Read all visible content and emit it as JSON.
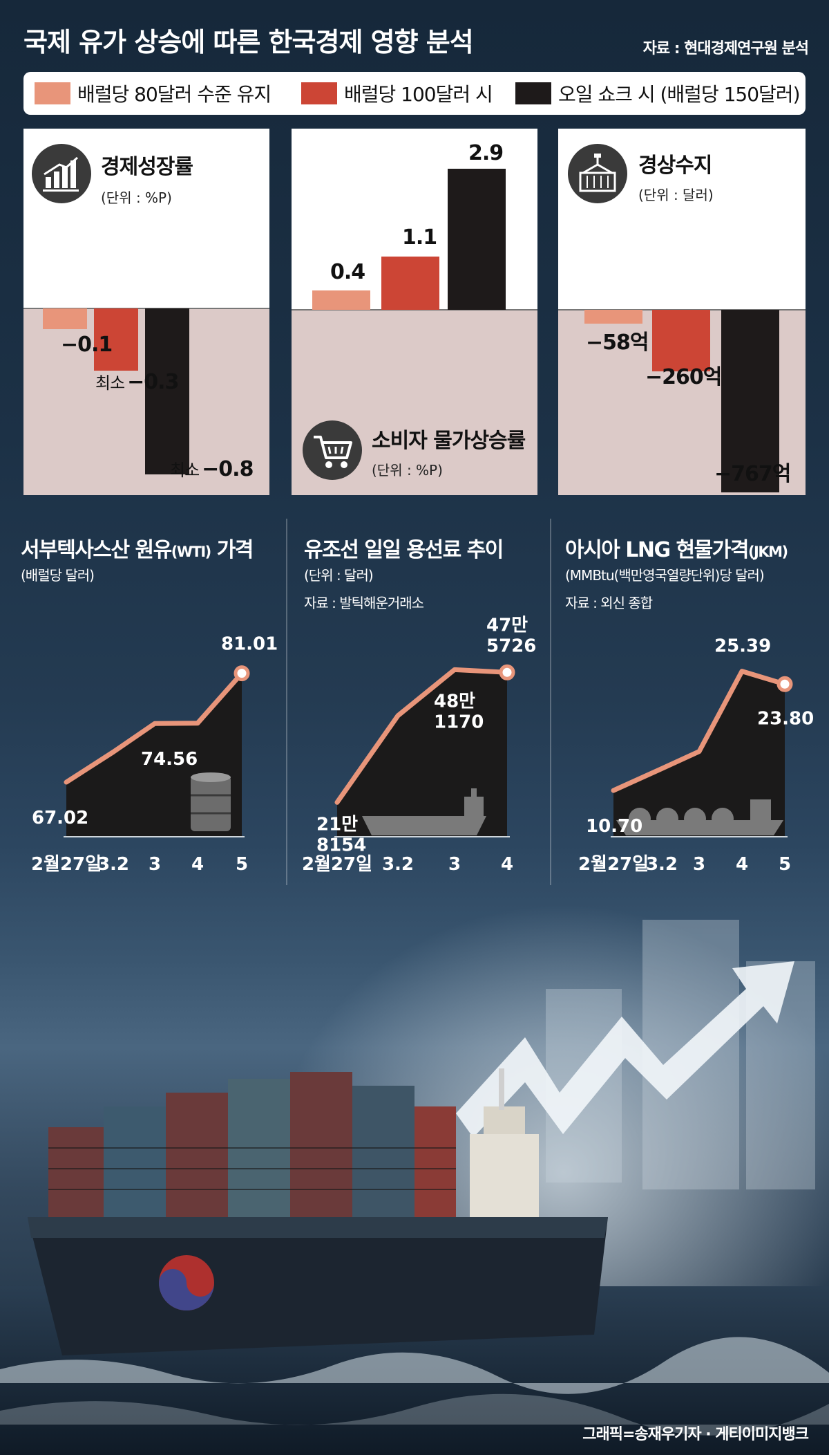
{
  "header": {
    "title": "국제 유가 상승에 따른 한국경제 영향 분석",
    "source": "자료 : 현대경제연구원 분석"
  },
  "legend": [
    {
      "label": "배럴당 80달러 수준 유지",
      "color": "#e8957a"
    },
    {
      "label": "배럴당 100달러 시",
      "color": "#cc4535"
    },
    {
      "label": "오일 쇼크 시 (배럴당 150달러)",
      "color": "#1e1a1a"
    }
  ],
  "colors": {
    "line": "#e8957a",
    "dark_fill": "#1b1a1a",
    "neg_bg": "#dccac8"
  },
  "chart_data": [
    {
      "type": "bar",
      "title": "경제성장률",
      "unit": "(단위 : %P)",
      "icon": "growth-chart-icon",
      "series": [
        {
          "name": "배럴당 80달러 수준 유지",
          "value": -0.1,
          "label": "−0.1",
          "prefix": ""
        },
        {
          "name": "배럴당 100달러 시",
          "value": -0.3,
          "label": "−0.3",
          "prefix": "최소"
        },
        {
          "name": "오일 쇼크 시 (배럴당 150달러)",
          "value": -0.8,
          "label": "−0.8",
          "prefix": "최소"
        }
      ]
    },
    {
      "type": "bar",
      "title": "소비자 물가상승률",
      "unit": "(단위 : %P)",
      "icon": "shopping-cart-icon",
      "series": [
        {
          "name": "배럴당 80달러 수준 유지",
          "value": 0.4,
          "label": "0.4",
          "prefix": ""
        },
        {
          "name": "배럴당 100달러 시",
          "value": 1.1,
          "label": "1.1",
          "prefix": ""
        },
        {
          "name": "오일 쇼크 시 (배럴당 150달러)",
          "value": 2.9,
          "label": "2.9",
          "prefix": ""
        }
      ]
    },
    {
      "type": "bar",
      "title": "경상수지",
      "unit": "(단위 : 달러)",
      "icon": "container-crane-icon",
      "series": [
        {
          "name": "배럴당 80달러 수준 유지",
          "value": -58,
          "label": "−58억",
          "prefix": ""
        },
        {
          "name": "배럴당 100달러 시",
          "value": -260,
          "label": "−260억",
          "prefix": ""
        },
        {
          "name": "오일 쇼크 시 (배럴당 150달러)",
          "value": -767,
          "label": "−767억",
          "prefix": ""
        }
      ]
    },
    {
      "type": "line",
      "title": "서부텍사스산 원유",
      "title_suffix": "(WTI)",
      "title_end": " 가격",
      "unit": "(배럴당 달러)",
      "source": "",
      "icon": "oil-barrel-icon",
      "x": [
        "2월27일",
        "3.2",
        "3",
        "4",
        "5"
      ],
      "y": [
        67.02,
        70.9,
        74.56,
        74.6,
        81.01
      ],
      "point_labels": [
        {
          "index": 0,
          "text": [
            "67.02"
          ]
        },
        {
          "index": 2,
          "text": [
            "74.56"
          ]
        },
        {
          "index": 4,
          "text": [
            "81.01"
          ]
        }
      ]
    },
    {
      "type": "line",
      "title": "유조선 일일 용선료 추이",
      "title_suffix": "",
      "title_end": "",
      "unit": "(단위 : 달러)",
      "source": "자료 : 발틱해운거래소",
      "icon": "tanker-ship-icon",
      "x": [
        "2월27일",
        "3.2",
        "3",
        "4"
      ],
      "y": [
        218154,
        390000,
        481170,
        475726
      ],
      "point_labels": [
        {
          "index": 0,
          "text": [
            "21만",
            "8154"
          ]
        },
        {
          "index": 2,
          "text": [
            "48만",
            "1170"
          ]
        },
        {
          "index": 3,
          "text": [
            "47만",
            "5726"
          ]
        }
      ]
    },
    {
      "type": "line",
      "title": "아시아 LNG 현물가격",
      "title_suffix": "(JKM)",
      "title_end": "",
      "unit": "(MMBtu(백만영국열량단위)당 달러)",
      "source": "자료 : 외신 종합",
      "icon": "lng-carrier-icon",
      "x": [
        "2월27일",
        "3.2",
        "3",
        "4",
        "5"
      ],
      "y": [
        10.7,
        13.4,
        15.5,
        25.39,
        23.8
      ],
      "point_labels": [
        {
          "index": 0,
          "text": [
            "10.70"
          ]
        },
        {
          "index": 3,
          "text": [
            "25.39"
          ]
        },
        {
          "index": 4,
          "text": [
            "23.80"
          ]
        }
      ]
    }
  ],
  "credit": "그래픽=송재우기자 · 게티이미지뱅크"
}
